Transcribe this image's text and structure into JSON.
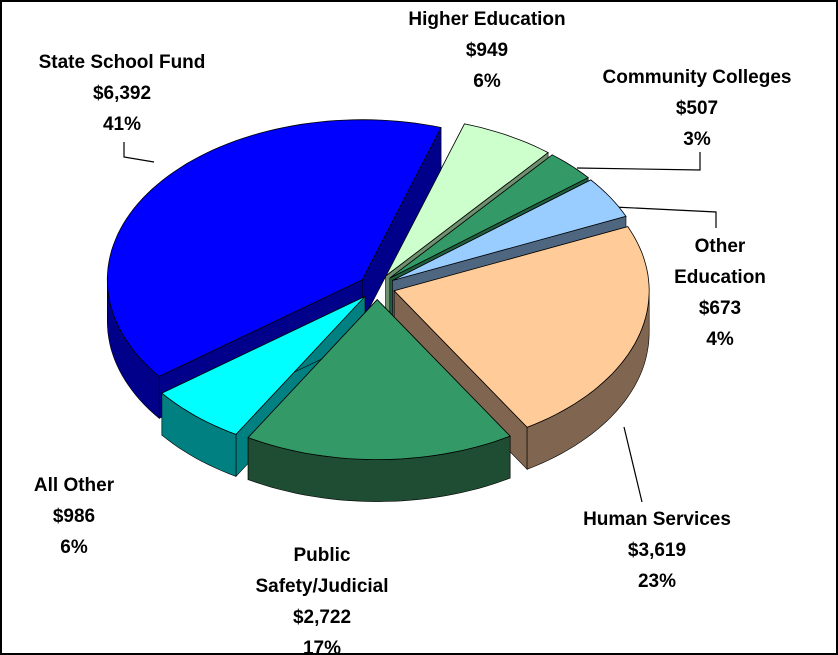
{
  "chart_data": {
    "type": "pie",
    "categories": [
      "Higher Education",
      "Community Colleges",
      "Other Education",
      "Human Services",
      "Public Safety/Judicial",
      "All Other",
      "State School Fund"
    ],
    "values": [
      949,
      507,
      673,
      3619,
      2722,
      986,
      6392
    ],
    "value_labels": [
      "$949",
      "$507",
      "$673",
      "$3,619",
      "$2,722",
      "$986",
      "$6,392"
    ],
    "percent_labels": [
      "6%",
      "3%",
      "4%",
      "23%",
      "17%",
      "6%",
      "41%"
    ],
    "colors": [
      "#ccffcc",
      "#339966",
      "#99ccff",
      "#ffcc99",
      "#339966",
      "#00ffff",
      "#0000ff"
    ],
    "side_colors": [
      "#6f8f6f",
      "#1f5f3d",
      "#4f6680",
      "#806650",
      "#1f4d33",
      "#008080",
      "#00008b"
    ]
  }
}
